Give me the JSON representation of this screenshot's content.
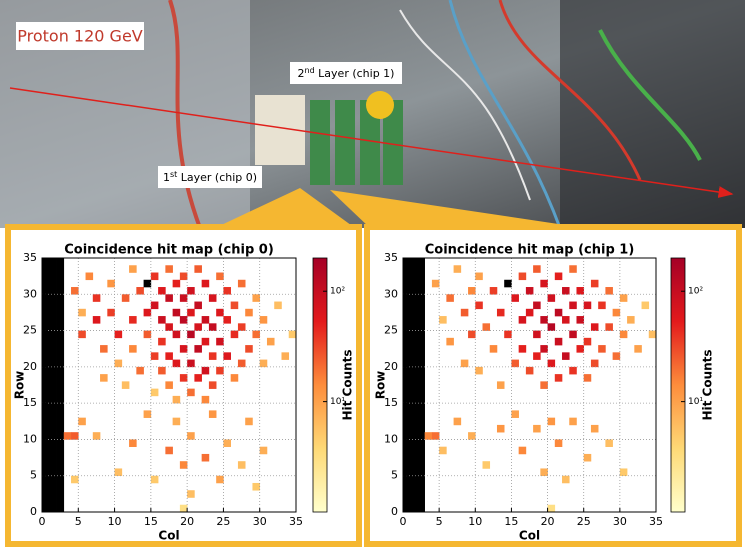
{
  "photo": {
    "beam_label": "Proton 120 GeV",
    "layer2_label": {
      "prefix": "2",
      "sup": "nd",
      "suffix": " Layer (chip 1)"
    },
    "layer1_label": {
      "prefix": "1",
      "sup": "st",
      "suffix": " Layer (chip 0)"
    }
  },
  "chart_data": [
    {
      "type": "heatmap",
      "title": "Coincidence hit map (chip 0)",
      "x_label": "Col",
      "y_label": "Row",
      "colorbar_label": "Hit Counts",
      "xlim": [
        0,
        35
      ],
      "ylim": [
        0,
        35
      ],
      "xticks": [
        0,
        5,
        10,
        15,
        20,
        25,
        30,
        35
      ],
      "yticks": [
        0,
        5,
        10,
        15,
        20,
        25,
        30,
        35
      ],
      "zlim": [
        1,
        200
      ],
      "log_scale": true,
      "zticks": [
        {
          "value": 10,
          "label": "10¹"
        },
        {
          "value": 100,
          "label": "10²"
        }
      ],
      "colormap": [
        "#ffffcc",
        "#fed976",
        "#fd8d3c",
        "#e31a1c",
        "#a50026"
      ],
      "over_color": "#000000",
      "dead_color": "#000000",
      "grid": true,
      "dead_columns": [
        0,
        1,
        2
      ],
      "cells": [
        [
          4,
          30,
          20
        ],
        [
          5,
          27,
          8
        ],
        [
          5,
          24,
          30
        ],
        [
          6,
          32,
          15
        ],
        [
          7,
          29,
          40
        ],
        [
          7,
          26,
          60
        ],
        [
          8,
          22,
          20
        ],
        [
          8,
          18,
          10
        ],
        [
          9,
          31,
          12
        ],
        [
          9,
          27,
          35
        ],
        [
          10,
          24,
          50
        ],
        [
          10,
          20,
          8
        ],
        [
          11,
          29,
          25
        ],
        [
          11,
          17,
          6
        ],
        [
          12,
          33,
          10
        ],
        [
          12,
          26,
          45
        ],
        [
          12,
          22,
          15
        ],
        [
          13,
          30,
          30
        ],
        [
          13,
          19,
          20
        ],
        [
          14,
          31,
          250
        ],
        [
          14,
          27,
          60
        ],
        [
          14,
          24,
          25
        ],
        [
          15,
          32,
          40
        ],
        [
          15,
          28,
          80
        ],
        [
          15,
          21,
          35
        ],
        [
          15,
          16,
          5
        ],
        [
          16,
          30,
          60
        ],
        [
          16,
          26,
          90
        ],
        [
          16,
          23,
          40
        ],
        [
          16,
          19,
          25
        ],
        [
          17,
          33,
          20
        ],
        [
          17,
          29,
          100
        ],
        [
          17,
          25,
          70
        ],
        [
          17,
          21,
          50
        ],
        [
          17,
          17,
          15
        ],
        [
          18,
          31,
          50
        ],
        [
          18,
          27,
          110
        ],
        [
          18,
          24,
          80
        ],
        [
          18,
          20,
          60
        ],
        [
          18,
          15,
          8
        ],
        [
          19,
          32,
          30
        ],
        [
          19,
          29,
          90
        ],
        [
          19,
          26,
          120
        ],
        [
          19,
          22,
          70
        ],
        [
          19,
          18,
          40
        ],
        [
          20,
          30,
          80
        ],
        [
          20,
          27,
          60
        ],
        [
          20,
          24,
          130
        ],
        [
          20,
          20,
          90
        ],
        [
          20,
          16,
          20
        ],
        [
          21,
          33,
          25
        ],
        [
          21,
          28,
          100
        ],
        [
          21,
          25,
          70
        ],
        [
          21,
          22,
          110
        ],
        [
          21,
          18,
          50
        ],
        [
          22,
          31,
          60
        ],
        [
          22,
          26,
          90
        ],
        [
          22,
          23,
          60
        ],
        [
          22,
          19,
          80
        ],
        [
          22,
          15,
          15
        ],
        [
          23,
          29,
          70
        ],
        [
          23,
          25,
          100
        ],
        [
          23,
          21,
          40
        ],
        [
          23,
          17,
          30
        ],
        [
          24,
          32,
          20
        ],
        [
          24,
          27,
          60
        ],
        [
          24,
          23,
          80
        ],
        [
          24,
          19,
          35
        ],
        [
          25,
          30,
          40
        ],
        [
          25,
          26,
          50
        ],
        [
          25,
          21,
          60
        ],
        [
          26,
          28,
          30
        ],
        [
          26,
          24,
          45
        ],
        [
          26,
          18,
          15
        ],
        [
          27,
          31,
          20
        ],
        [
          27,
          25,
          35
        ],
        [
          27,
          20,
          25
        ],
        [
          28,
          27,
          15
        ],
        [
          28,
          22,
          30
        ],
        [
          29,
          29,
          10
        ],
        [
          29,
          24,
          20
        ],
        [
          30,
          26,
          12
        ],
        [
          30,
          20,
          8
        ],
        [
          31,
          23,
          10
        ],
        [
          32,
          28,
          6
        ],
        [
          33,
          21,
          8
        ],
        [
          34,
          24,
          5
        ],
        [
          3,
          10,
          20
        ],
        [
          4,
          10,
          25
        ],
        [
          4,
          4,
          5
        ],
        [
          5,
          12,
          10
        ],
        [
          7,
          10,
          8
        ],
        [
          10,
          5,
          6
        ],
        [
          12,
          9,
          15
        ],
        [
          14,
          13,
          10
        ],
        [
          15,
          4,
          5
        ],
        [
          17,
          8,
          20
        ],
        [
          18,
          12,
          8
        ],
        [
          19,
          6,
          15
        ],
        [
          20,
          10,
          10
        ],
        [
          20,
          2,
          6
        ],
        [
          22,
          7,
          20
        ],
        [
          23,
          13,
          12
        ],
        [
          24,
          4,
          10
        ],
        [
          25,
          9,
          8
        ],
        [
          27,
          6,
          6
        ],
        [
          28,
          12,
          10
        ],
        [
          29,
          3,
          5
        ],
        [
          30,
          8,
          8
        ],
        [
          19,
          0,
          3
        ]
      ]
    },
    {
      "type": "heatmap",
      "title": "Coincidence hit map (chip 1)",
      "x_label": "Col",
      "y_label": "Row",
      "colorbar_label": "Hit Counts",
      "xlim": [
        0,
        35
      ],
      "ylim": [
        0,
        35
      ],
      "xticks": [
        0,
        5,
        10,
        15,
        20,
        25,
        30,
        35
      ],
      "yticks": [
        0,
        5,
        10,
        15,
        20,
        25,
        30,
        35
      ],
      "zlim": [
        1,
        200
      ],
      "log_scale": true,
      "zticks": [
        {
          "value": 10,
          "label": "10¹"
        },
        {
          "value": 100,
          "label": "10²"
        }
      ],
      "colormap": [
        "#ffffcc",
        "#fed976",
        "#fd8d3c",
        "#e31a1c",
        "#a50026"
      ],
      "over_color": "#000000",
      "dead_color": "#000000",
      "grid": true,
      "dead_columns": [
        0,
        1,
        2
      ],
      "cells": [
        [
          4,
          31,
          10
        ],
        [
          5,
          26,
          6
        ],
        [
          6,
          29,
          20
        ],
        [
          6,
          23,
          12
        ],
        [
          7,
          33,
          8
        ],
        [
          8,
          27,
          25
        ],
        [
          8,
          20,
          10
        ],
        [
          9,
          30,
          15
        ],
        [
          9,
          24,
          30
        ],
        [
          10,
          32,
          10
        ],
        [
          10,
          28,
          40
        ],
        [
          10,
          19,
          8
        ],
        [
          11,
          25,
          20
        ],
        [
          12,
          30,
          35
        ],
        [
          12,
          22,
          15
        ],
        [
          13,
          27,
          45
        ],
        [
          13,
          17,
          10
        ],
        [
          14,
          31,
          250
        ],
        [
          14,
          24,
          40
        ],
        [
          15,
          29,
          60
        ],
        [
          15,
          20,
          25
        ],
        [
          16,
          32,
          30
        ],
        [
          16,
          26,
          70
        ],
        [
          16,
          22,
          50
        ],
        [
          17,
          30,
          90
        ],
        [
          17,
          27,
          60
        ],
        [
          17,
          19,
          30
        ],
        [
          18,
          33,
          25
        ],
        [
          18,
          28,
          100
        ],
        [
          18,
          24,
          80
        ],
        [
          18,
          21,
          50
        ],
        [
          19,
          31,
          70
        ],
        [
          19,
          26,
          110
        ],
        [
          19,
          22,
          90
        ],
        [
          19,
          17,
          20
        ],
        [
          20,
          29,
          80
        ],
        [
          20,
          25,
          140
        ],
        [
          20,
          20,
          60
        ],
        [
          21,
          32,
          50
        ],
        [
          21,
          27,
          120
        ],
        [
          21,
          23,
          90
        ],
        [
          21,
          18,
          40
        ],
        [
          22,
          30,
          90
        ],
        [
          22,
          26,
          70
        ],
        [
          22,
          21,
          100
        ],
        [
          23,
          33,
          20
        ],
        [
          23,
          28,
          80
        ],
        [
          23,
          24,
          110
        ],
        [
          23,
          19,
          40
        ],
        [
          24,
          30,
          60
        ],
        [
          24,
          26,
          90
        ],
        [
          24,
          22,
          50
        ],
        [
          25,
          28,
          70
        ],
        [
          25,
          23,
          40
        ],
        [
          25,
          18,
          20
        ],
        [
          26,
          31,
          35
        ],
        [
          26,
          25,
          60
        ],
        [
          26,
          20,
          30
        ],
        [
          27,
          28,
          40
        ],
        [
          27,
          22,
          25
        ],
        [
          28,
          30,
          20
        ],
        [
          28,
          25,
          30
        ],
        [
          29,
          27,
          15
        ],
        [
          29,
          21,
          20
        ],
        [
          30,
          29,
          10
        ],
        [
          30,
          24,
          15
        ],
        [
          31,
          26,
          8
        ],
        [
          32,
          22,
          10
        ],
        [
          33,
          28,
          5
        ],
        [
          34,
          24,
          6
        ],
        [
          3,
          10,
          15
        ],
        [
          4,
          10,
          20
        ],
        [
          5,
          8,
          6
        ],
        [
          7,
          12,
          10
        ],
        [
          9,
          10,
          8
        ],
        [
          11,
          6,
          5
        ],
        [
          13,
          11,
          12
        ],
        [
          15,
          13,
          10
        ],
        [
          16,
          8,
          15
        ],
        [
          18,
          11,
          10
        ],
        [
          19,
          5,
          8
        ],
        [
          20,
          12,
          12
        ],
        [
          21,
          9,
          15
        ],
        [
          22,
          4,
          6
        ],
        [
          23,
          12,
          10
        ],
        [
          25,
          7,
          8
        ],
        [
          26,
          11,
          10
        ],
        [
          28,
          9,
          6
        ],
        [
          30,
          5,
          5
        ],
        [
          20,
          0,
          3
        ]
      ]
    }
  ]
}
